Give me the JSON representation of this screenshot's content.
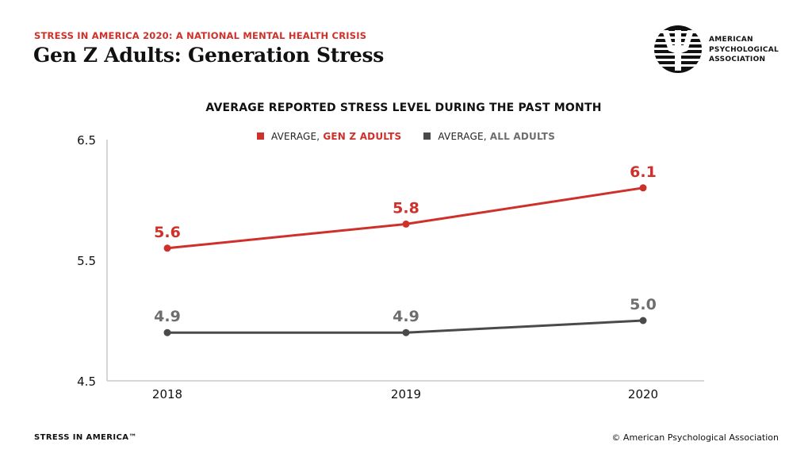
{
  "header": {
    "kicker": "STRESS IN AMERICA 2020: A NATIONAL MENTAL HEALTH CRISIS",
    "title": "Gen Z Adults: Generation Stress"
  },
  "logo": {
    "icon": "psi-icon",
    "lines": [
      "AMERICAN",
      "PSYCHOLOGICAL",
      "ASSOCIATION"
    ]
  },
  "colors": {
    "accent_red": "#d0302a",
    "gray_series": "#4a4a4a",
    "gray_label": "#6e6e6e",
    "axis": "#c8c8c8"
  },
  "chart_data": {
    "type": "line",
    "title": "AVERAGE REPORTED STRESS LEVEL DURING THE PAST MONTH",
    "xlabel": "",
    "ylabel": "",
    "categories": [
      "2018",
      "2019",
      "2020"
    ],
    "ylim": [
      4.5,
      6.5
    ],
    "yticks": [
      "4.5",
      "5.5",
      "6.5"
    ],
    "ytick_values": [
      4.5,
      5.5,
      6.5
    ],
    "grid": false,
    "legend_position": "top-center",
    "series": [
      {
        "name": "AVERAGE, GEN Z ADULTS",
        "legend_prefix": "AVERAGE, ",
        "legend_highlight": "GEN Z ADULTS",
        "values": [
          5.6,
          5.8,
          6.1
        ],
        "labels": [
          "5.6",
          "5.8",
          "6.1"
        ],
        "color": "#d0302a",
        "label_color": "#d0302a"
      },
      {
        "name": "AVERAGE, ALL ADULTS",
        "legend_prefix": "AVERAGE, ",
        "legend_highlight": "ALL ADULTS",
        "values": [
          4.9,
          4.9,
          5.0
        ],
        "labels": [
          "4.9",
          "4.9",
          "5.0"
        ],
        "color": "#4a4a4a",
        "label_color": "#6e6e6e"
      }
    ]
  },
  "footer": {
    "left": "STRESS IN AMERICA™",
    "right": "© American Psychological Association"
  }
}
